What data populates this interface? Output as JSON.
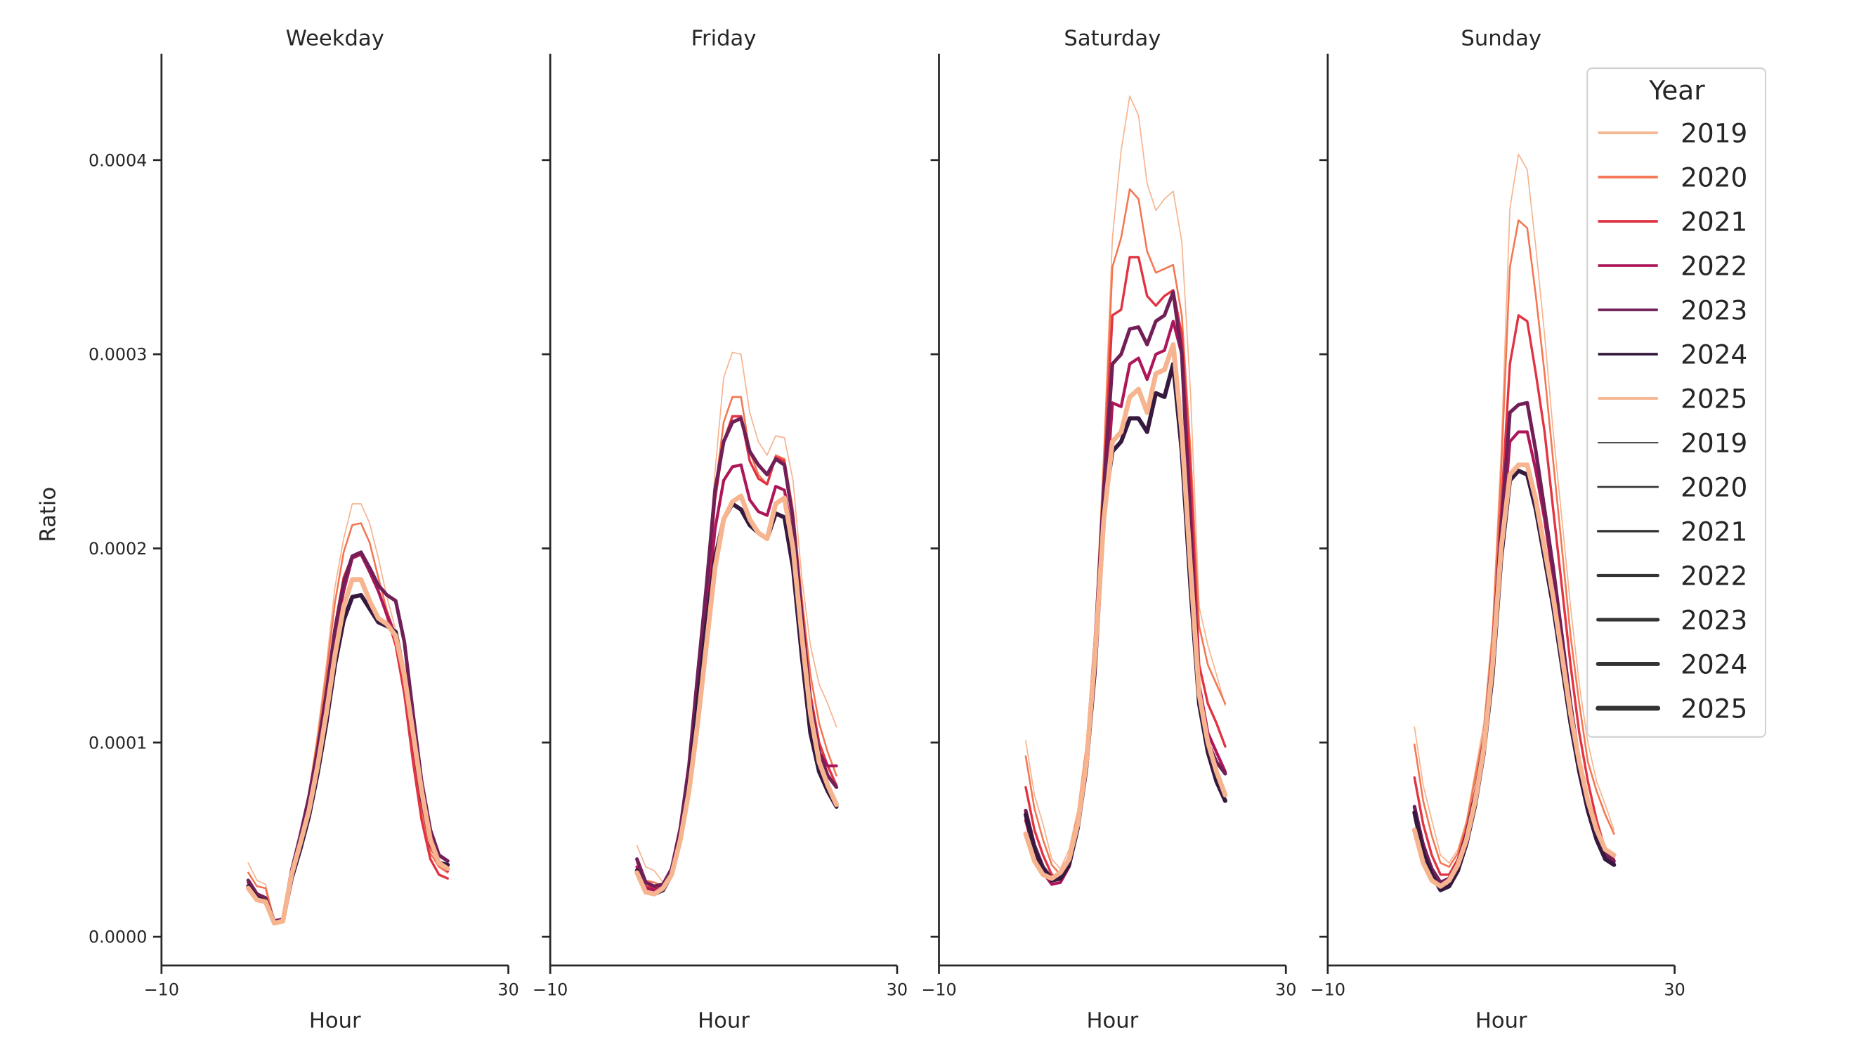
{
  "chart_data": {
    "type": "line",
    "ylabel": "Ratio",
    "xlabel": "Hour",
    "xlim": [
      -10,
      30
    ],
    "ylim": [
      -1.5e-05,
      0.000455
    ],
    "x_ticks": [
      "−10",
      "30"
    ],
    "y_ticks": [
      0.0,
      0.0001,
      0.0002,
      0.0003,
      0.0004
    ],
    "y_tick_labels": [
      "0.0000",
      "0.0001",
      "0.0002",
      "0.0003",
      "0.0004"
    ],
    "grid": false,
    "legend": {
      "title": "Year",
      "placement": "top-right",
      "hue_entries": [
        "2019",
        "2020",
        "2021",
        "2022",
        "2023",
        "2024",
        "2025"
      ],
      "size_entries": [
        "2019",
        "2020",
        "2021",
        "2022",
        "2023",
        "2024",
        "2025"
      ]
    },
    "colors": {
      "2019": "#f6b48f",
      "2020": "#f37651",
      "2021": "#e13342",
      "2022": "#ad1759",
      "2023": "#701f57",
      "2024": "#35193e",
      "2025": "#f6b48f",
      "size_legend": "#333333"
    },
    "hours": [
      0,
      1,
      2,
      3,
      4,
      5,
      6,
      7,
      8,
      9,
      10,
      11,
      12,
      13,
      14,
      15,
      16,
      17,
      18,
      19,
      20,
      21,
      22,
      23
    ],
    "panels": [
      {
        "title": "Weekday",
        "series": [
          {
            "name": "2019",
            "values": [
              3.8e-05,
              2.9e-05,
              2.7e-05,
              9e-06,
              9e-06,
              3.4e-05,
              5.2e-05,
              7.5e-05,
              0.000105,
              0.00014,
              0.00018,
              0.000205,
              0.000223,
              0.000223,
              0.000213,
              0.000195,
              0.000175,
              0.000158,
              0.00013,
              9.5e-05,
              6.5e-05,
              4.5e-05,
              3.8e-05,
              3.4e-05
            ]
          },
          {
            "name": "2020",
            "values": [
              3.3e-05,
              2.6e-05,
              2.5e-05,
              8e-06,
              9e-06,
              3.4e-05,
              5.1e-05,
              7.3e-05,
              0.000102,
              0.000135,
              0.000172,
              0.000198,
              0.000212,
              0.000213,
              0.000203,
              0.000185,
              0.000168,
              0.000155,
              0.00013,
              9.5e-05,
              6.5e-05,
              4.3e-05,
              3.6e-05,
              3.3e-05
            ]
          },
          {
            "name": "2021",
            "values": [
              2.8e-05,
              2.1e-05,
              2e-05,
              8e-06,
              9e-06,
              3.3e-05,
              5e-05,
              7e-05,
              9.6e-05,
              0.000126,
              0.00016,
              0.000185,
              0.000196,
              0.000198,
              0.00019,
              0.000178,
              0.000165,
              0.00015,
              0.000125,
              9e-05,
              6e-05,
              4e-05,
              3.2e-05,
              3e-05
            ]
          },
          {
            "name": "2022",
            "values": [
              2.8e-05,
              2.1e-05,
              2e-05,
              8e-06,
              9e-06,
              3.3e-05,
              5e-05,
              7e-05,
              9.4e-05,
              0.000123,
              0.000155,
              0.000178,
              0.000195,
              0.000197,
              0.000188,
              0.000178,
              0.000166,
              0.000155,
              0.000135,
              0.0001,
              7e-05,
              4.7e-05,
              3.8e-05,
              3.4e-05
            ]
          },
          {
            "name": "2023",
            "values": [
              2.9e-05,
              2.2e-05,
              2e-05,
              8e-06,
              9e-06,
              3.4e-05,
              5.2e-05,
              7.2e-05,
              9.6e-05,
              0.000125,
              0.000158,
              0.000182,
              0.000196,
              0.000198,
              0.00019,
              0.000181,
              0.000176,
              0.000173,
              0.000152,
              0.000115,
              8e-05,
              5.5e-05,
              4.2e-05,
              3.9e-05
            ]
          },
          {
            "name": "2024",
            "values": [
              2.6e-05,
              2e-05,
              1.8e-05,
              7e-06,
              8e-06,
              3e-05,
              4.5e-05,
              6.2e-05,
              8.4e-05,
              0.00011,
              0.00014,
              0.000163,
              0.000175,
              0.000176,
              0.000169,
              0.000162,
              0.00016,
              0.000157,
              0.000135,
              0.000105,
              7.3e-05,
              5e-05,
              3.8e-05,
              3.7e-05
            ]
          },
          {
            "name": "2025",
            "values": [
              2.5e-05,
              1.9e-05,
              1.8e-05,
              7e-06,
              8e-06,
              3.2e-05,
              4.8e-05,
              6.5e-05,
              8.8e-05,
              0.000115,
              0.000145,
              0.00017,
              0.000184,
              0.000184,
              0.000173,
              0.000164,
              0.000161,
              0.000155,
              0.000135,
              0.000105,
              7.5e-05,
              5e-05,
              3.8e-05,
              3.5e-05
            ]
          }
        ]
      },
      {
        "title": "Friday",
        "series": [
          {
            "name": "2019",
            "values": [
              4.7e-05,
              3.6e-05,
              3.4e-05,
              2.8e-05,
              3.6e-05,
              5.5e-05,
              8.5e-05,
              0.00013,
              0.00018,
              0.00024,
              0.000288,
              0.000301,
              0.0003,
              0.00027,
              0.000255,
              0.000248,
              0.000258,
              0.000257,
              0.000235,
              0.000185,
              0.00015,
              0.00013,
              0.00012,
              0.000108
            ]
          },
          {
            "name": "2020",
            "values": [
              3.8e-05,
              2.9e-05,
              2.8e-05,
              2.6e-05,
              3.4e-05,
              5.3e-05,
              8.3e-05,
              0.000128,
              0.000175,
              0.00023,
              0.000265,
              0.000278,
              0.000278,
              0.00025,
              0.000238,
              0.000233,
              0.000248,
              0.000246,
              0.00022,
              0.000175,
              0.000135,
              0.00011,
              9.5e-05,
              8.3e-05
            ]
          },
          {
            "name": "2021",
            "values": [
              3.5e-05,
              2.6e-05,
              2.5e-05,
              2.5e-05,
              3.3e-05,
              5.2e-05,
              8.2e-05,
              0.000125,
              0.00017,
              0.000225,
              0.000255,
              0.000268,
              0.000268,
              0.000245,
              0.000236,
              0.000233,
              0.000247,
              0.000245,
              0.000215,
              0.00017,
              0.000125,
              0.0001,
              8.8e-05,
              7.8e-05
            ]
          },
          {
            "name": "2022",
            "values": [
              3.6e-05,
              2.5e-05,
              2.4e-05,
              2.5e-05,
              3.3e-05,
              5.2e-05,
              8.1e-05,
              0.000123,
              0.000165,
              0.00021,
              0.000235,
              0.000242,
              0.000243,
              0.000225,
              0.000219,
              0.000217,
              0.000232,
              0.00023,
              0.000205,
              0.00016,
              0.000115,
              9.5e-05,
              8.8e-05,
              8.8e-05
            ]
          },
          {
            "name": "2023",
            "values": [
              4e-05,
              2.8e-05,
              2.6e-05,
              2.7e-05,
              3.5e-05,
              5.6e-05,
              8.8e-05,
              0.000135,
              0.00018,
              0.00023,
              0.000255,
              0.000265,
              0.000267,
              0.00025,
              0.000243,
              0.000238,
              0.000246,
              0.000243,
              0.000215,
              0.000165,
              0.00012,
              9.5e-05,
              8.3e-05,
              7.7e-05
            ]
          },
          {
            "name": "2024",
            "values": [
              3.4e-05,
              2.3e-05,
              2.2e-05,
              2.4e-05,
              3.2e-05,
              5e-05,
              7.8e-05,
              0.00012,
              0.00016,
              0.000195,
              0.000215,
              0.000223,
              0.00022,
              0.000212,
              0.000208,
              0.000205,
              0.000218,
              0.000216,
              0.00019,
              0.000145,
              0.000105,
              8.5e-05,
              7.5e-05,
              6.7e-05
            ]
          },
          {
            "name": "2025",
            "values": [
              3.3e-05,
              2.3e-05,
              2.2e-05,
              2.5e-05,
              3.2e-05,
              5e-05,
              7.5e-05,
              0.00011,
              0.00015,
              0.00019,
              0.000215,
              0.000224,
              0.000227,
              0.000215,
              0.000208,
              0.000205,
              0.000223,
              0.000226,
              0.0002,
              0.000155,
              0.000115,
              9e-05,
              7.8e-05,
              6.8e-05
            ]
          }
        ]
      },
      {
        "title": "Saturday",
        "series": [
          {
            "name": "2019",
            "values": [
              0.000101,
              7.3e-05,
              5.8e-05,
              4e-05,
              3.5e-05,
              4.5e-05,
              6.5e-05,
              0.0001,
              0.00016,
              0.00025,
              0.00036,
              0.000405,
              0.000433,
              0.000423,
              0.000388,
              0.000374,
              0.00038,
              0.000384,
              0.000358,
              0.00028,
              0.00017,
              0.00015,
              0.000135,
              0.000119
            ]
          },
          {
            "name": "2020",
            "values": [
              9.3e-05,
              6.6e-05,
              5e-05,
              3.7e-05,
              3.2e-05,
              4.2e-05,
              6.3e-05,
              9.8e-05,
              0.000155,
              0.000245,
              0.000345,
              0.00036,
              0.000385,
              0.00038,
              0.000353,
              0.000342,
              0.000344,
              0.000346,
              0.00032,
              0.00025,
              0.00016,
              0.00014,
              0.00013,
              0.00012
            ]
          },
          {
            "name": "2021",
            "values": [
              7.7e-05,
              5.5e-05,
              4.2e-05,
              3.2e-05,
              3e-05,
              4e-05,
              6e-05,
              9.5e-05,
              0.00015,
              0.000235,
              0.00032,
              0.000323,
              0.00035,
              0.00035,
              0.00033,
              0.000325,
              0.00033,
              0.000333,
              0.00031,
              0.00024,
              0.00014,
              0.00012,
              0.00011,
              9.8e-05
            ]
          },
          {
            "name": "2022",
            "values": [
              6e-05,
              4.3e-05,
              3.3e-05,
              2.7e-05,
              2.8e-05,
              3.6e-05,
              5.5e-05,
              8.5e-05,
              0.000135,
              0.00021,
              0.000275,
              0.000273,
              0.000295,
              0.000298,
              0.000287,
              0.0003,
              0.000302,
              0.000317,
              0.0003,
              0.00022,
              0.00013,
              0.000105,
              9.5e-05,
              8.5e-05
            ]
          },
          {
            "name": "2023",
            "values": [
              6.5e-05,
              4.7e-05,
              3.6e-05,
              3e-05,
              3e-05,
              3.8e-05,
              5.8e-05,
              9.2e-05,
              0.00015,
              0.00023,
              0.000295,
              0.0003,
              0.000313,
              0.000314,
              0.000305,
              0.000317,
              0.00032,
              0.000332,
              0.0003,
              0.00021,
              0.000125,
              0.0001,
              9e-05,
              8.4e-05
            ]
          },
          {
            "name": "2024",
            "values": [
              6.3e-05,
              4.5e-05,
              3.5e-05,
              2.9e-05,
              3e-05,
              3.7e-05,
              5.6e-05,
              8.8e-05,
              0.00014,
              0.00022,
              0.00025,
              0.000255,
              0.000267,
              0.000267,
              0.00026,
              0.00028,
              0.000278,
              0.000295,
              0.00025,
              0.00018,
              0.00012,
              9.5e-05,
              8e-05,
              7e-05
            ]
          },
          {
            "name": "2025",
            "values": [
              5.3e-05,
              3.9e-05,
              3.2e-05,
              3e-05,
              3.3e-05,
              4e-05,
              5.8e-05,
              9e-05,
              0.000145,
              0.000215,
              0.000255,
              0.00026,
              0.000278,
              0.000282,
              0.00027,
              0.00029,
              0.000292,
              0.000305,
              0.00026,
              0.00019,
              0.000125,
              0.0001,
              8.5e-05,
              7.3e-05
            ]
          }
        ]
      },
      {
        "title": "Sunday",
        "series": [
          {
            "name": "2019",
            "values": [
              0.000108,
              7.8e-05,
              6e-05,
              4.2e-05,
              3.8e-05,
              4.5e-05,
              6e-05,
              8.5e-05,
              0.00011,
              0.00016,
              0.00025,
              0.000375,
              0.000403,
              0.000395,
              0.000355,
              0.00031,
              0.00026,
              0.000215,
              0.00017,
              0.00013,
              0.0001,
              8e-05,
              6.8e-05,
              5.5e-05
            ]
          },
          {
            "name": "2020",
            "values": [
              9.9e-05,
              7e-05,
              5.2e-05,
              3.8e-05,
              3.6e-05,
              4.3e-05,
              5.8e-05,
              8.2e-05,
              0.000105,
              0.000155,
              0.00024,
              0.000345,
              0.000369,
              0.000365,
              0.00033,
              0.00029,
              0.000245,
              0.0002,
              0.000155,
              0.00012,
              9e-05,
              7.5e-05,
              6.3e-05,
              5.3e-05
            ]
          },
          {
            "name": "2021",
            "values": [
              8.2e-05,
              5.8e-05,
              4.2e-05,
              3.2e-05,
              3.2e-05,
              4e-05,
              5.5e-05,
              7.5e-05,
              0.0001,
              0.000145,
              0.00022,
              0.000295,
              0.00032,
              0.000317,
              0.00029,
              0.00026,
              0.00022,
              0.00018,
              0.00014,
              0.000105,
              8e-05,
              6e-05,
              4.5e-05,
              4e-05
            ]
          },
          {
            "name": "2022",
            "values": [
              6.7e-05,
              4.8e-05,
              3.5e-05,
              2.8e-05,
              3e-05,
              3.8e-05,
              5.2e-05,
              7.2e-05,
              9.8e-05,
              0.00014,
              0.0002,
              0.000255,
              0.00026,
              0.00026,
              0.00024,
              0.000215,
              0.000185,
              0.00015,
              0.000115,
              8.5e-05,
              6.5e-05,
              5e-05,
              4.2e-05,
              3.8e-05
            ]
          },
          {
            "name": "2023",
            "values": [
              6.7e-05,
              4.7e-05,
              3.5e-05,
              2.8e-05,
              3e-05,
              3.8e-05,
              5.3e-05,
              7.3e-05,
              0.0001,
              0.000145,
              0.00021,
              0.00027,
              0.000274,
              0.000275,
              0.00025,
              0.00022,
              0.00019,
              0.000155,
              0.00012,
              9e-05,
              6.8e-05,
              5.2e-05,
              4.3e-05,
              3.9e-05
            ]
          },
          {
            "name": "2024",
            "values": [
              6.4e-05,
              4.3e-05,
              3.2e-05,
              2.4e-05,
              2.6e-05,
              3.4e-05,
              4.8e-05,
              6.8e-05,
              9.5e-05,
              0.000135,
              0.000195,
              0.000235,
              0.00024,
              0.000238,
              0.00022,
              0.000195,
              0.00017,
              0.00014,
              0.00011,
              8.5e-05,
              6.5e-05,
              5e-05,
              4e-05,
              3.7e-05
            ]
          },
          {
            "name": "2025",
            "values": [
              5.5e-05,
              3.8e-05,
              2.9e-05,
              2.6e-05,
              2.9e-05,
              3.7e-05,
              5e-05,
              7e-05,
              9.7e-05,
              0.00014,
              0.0002,
              0.000238,
              0.000243,
              0.000243,
              0.000225,
              0.0002,
              0.000175,
              0.000145,
              0.000115,
              9e-05,
              7e-05,
              5.5e-05,
              4.5e-05,
              4.2e-05
            ]
          }
        ]
      }
    ]
  }
}
